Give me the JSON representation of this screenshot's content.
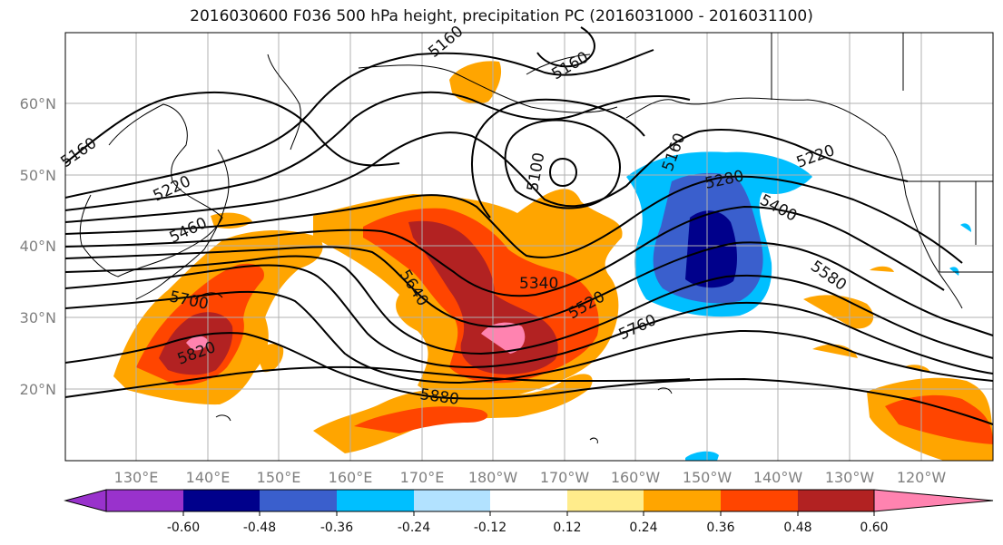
{
  "title": "2016030600 F036 500 hPa height, precipitation PC (2016031000 - 2016031100)",
  "map": {
    "lon_labels": [
      "130°E",
      "140°E",
      "150°E",
      "160°E",
      "170°E",
      "180°W",
      "170°W",
      "160°W",
      "150°W",
      "140°W",
      "130°W",
      "120°W"
    ],
    "lat_labels": [
      "60°N",
      "50°N",
      "40°N",
      "30°N",
      "20°N"
    ],
    "contour_labels": [
      "5160",
      "5160",
      "5160",
      "5220",
      "5460",
      "5700",
      "5820",
      "5880",
      "5640",
      "5340",
      "5100",
      "5160",
      "5280",
      "5400",
      "5580",
      "5520",
      "5760",
      "5220"
    ]
  },
  "colorbar": {
    "colors": [
      "#9932cc",
      "#00008b",
      "#3a5fcd",
      "#00bfff",
      "#b2e2ff",
      "#ffffff",
      "#ffec8b",
      "#ffa500",
      "#ff4500",
      "#b22222",
      "#ff83b0"
    ],
    "ticks": [
      "-0.60",
      "-0.48",
      "-0.36",
      "-0.24",
      "-0.12",
      "0.12",
      "0.24",
      "0.36",
      "0.48",
      "0.60"
    ]
  }
}
